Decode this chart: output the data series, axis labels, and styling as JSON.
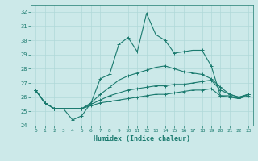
{
  "xlabel": "Humidex (Indice chaleur)",
  "xlim": [
    -0.5,
    23.5
  ],
  "ylim": [
    24,
    32.5
  ],
  "yticks": [
    24,
    25,
    26,
    27,
    28,
    29,
    30,
    31,
    32
  ],
  "xticks": [
    0,
    1,
    2,
    3,
    4,
    5,
    6,
    7,
    8,
    9,
    10,
    11,
    12,
    13,
    14,
    15,
    16,
    17,
    18,
    19,
    20,
    21,
    22,
    23
  ],
  "background_color": "#cce9e9",
  "grid_color": "#b0d8d8",
  "line_color": "#1a7a6e",
  "lines": [
    [
      26.5,
      25.6,
      25.2,
      25.2,
      24.4,
      24.7,
      25.6,
      27.3,
      27.6,
      29.7,
      30.2,
      29.2,
      31.9,
      30.4,
      30.0,
      29.1,
      29.2,
      29.3,
      29.3,
      28.2,
      26.1,
      26.1,
      25.9,
      26.2
    ],
    [
      26.5,
      25.6,
      25.2,
      25.2,
      25.2,
      25.2,
      25.6,
      26.2,
      26.7,
      27.2,
      27.5,
      27.7,
      27.9,
      28.1,
      28.2,
      28.0,
      27.8,
      27.7,
      27.6,
      27.3,
      26.7,
      26.2,
      26.0,
      26.2
    ],
    [
      26.5,
      25.6,
      25.2,
      25.2,
      25.2,
      25.2,
      25.5,
      25.8,
      26.1,
      26.3,
      26.5,
      26.6,
      26.7,
      26.8,
      26.8,
      26.9,
      26.9,
      27.0,
      27.1,
      27.2,
      26.5,
      26.2,
      26.0,
      26.2
    ],
    [
      26.5,
      25.6,
      25.2,
      25.2,
      25.2,
      25.2,
      25.4,
      25.6,
      25.7,
      25.8,
      25.9,
      26.0,
      26.1,
      26.2,
      26.2,
      26.3,
      26.4,
      26.5,
      26.5,
      26.6,
      26.1,
      26.0,
      25.9,
      26.1
    ]
  ]
}
